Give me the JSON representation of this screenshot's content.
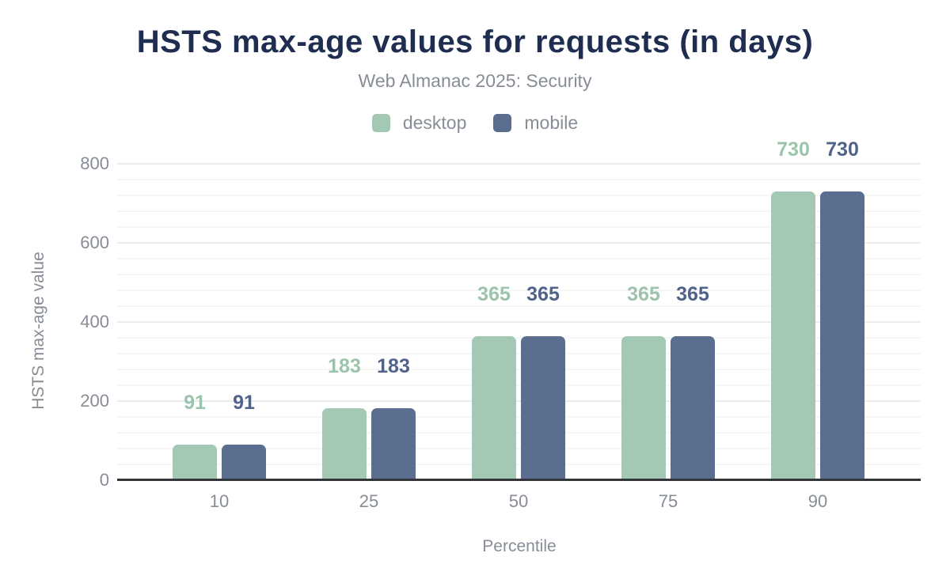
{
  "header": {
    "title": "HSTS max-age values for requests (in days)",
    "subtitle": "Web Almanac 2025: Security"
  },
  "legend": {
    "items": [
      {
        "label": "desktop",
        "color": "#a3c8b3"
      },
      {
        "label": "mobile",
        "color": "#5b6e90"
      }
    ]
  },
  "chart_data": {
    "type": "bar",
    "title": "HSTS max-age values for requests (in days)",
    "subtitle": "Web Almanac 2025: Security",
    "categories": [
      "10",
      "25",
      "50",
      "75",
      "90"
    ],
    "series": [
      {
        "name": "desktop",
        "color": "#a3c8b3",
        "label_color": "#9cc3ab",
        "values": [
          91,
          183,
          365,
          365,
          730
        ]
      },
      {
        "name": "mobile",
        "color": "#5b6e90",
        "label_color": "#50628a",
        "values": [
          91,
          183,
          365,
          365,
          730
        ]
      }
    ],
    "xlabel": "Percentile",
    "ylabel": "HSTS max-age value",
    "ylim": [
      0,
      800
    ],
    "y_ticks": [
      0,
      200,
      400,
      600,
      800
    ],
    "minor_grid_step": 40,
    "grid": true,
    "legend_position": "top",
    "data_labels": true
  },
  "colors": {
    "title": "#1f2d50",
    "muted_text": "#878d96",
    "axis_line": "#333638",
    "grid_major": "#ececec",
    "grid_minor": "#f6f6f6",
    "background": "#ffffff"
  }
}
